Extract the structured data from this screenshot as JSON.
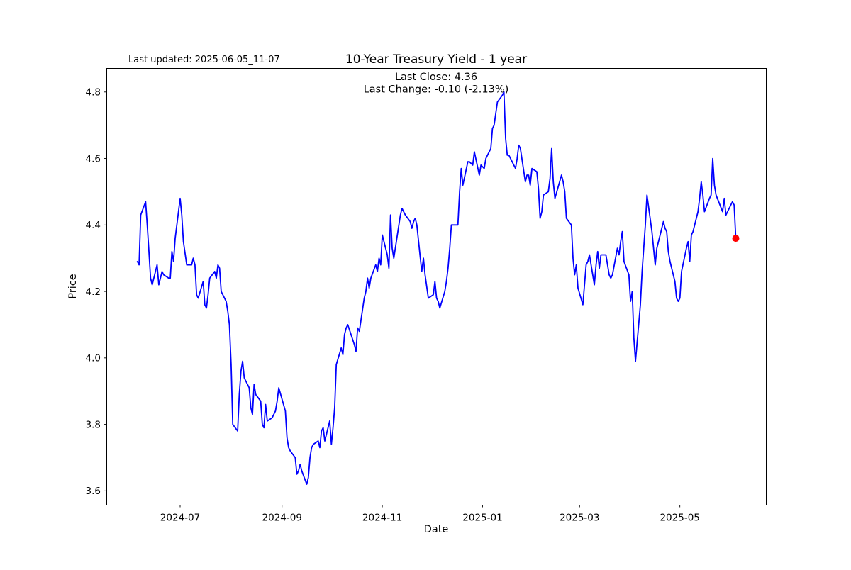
{
  "header": {
    "last_updated": "Last updated: 2025-06-05_11-07",
    "title": "10-Year Treasury Yield - 1 year",
    "annotation_line1": "Last Close: 4.36",
    "annotation_line2": "Last Change: -0.10 (-2.13%)"
  },
  "chart_data": {
    "type": "line",
    "title": "10-Year Treasury Yield - 1 year",
    "xlabel": "Date",
    "ylabel": "Price",
    "last_close": 4.36,
    "last_change": "-0.10 (-2.13%)",
    "line_color": "#0000ff",
    "marker_color": "#ff0000",
    "background_color": "#ffffff",
    "grid": false,
    "legend": "none",
    "ylim": [
      3.558,
      4.872
    ],
    "y_ticks": [
      "4.8",
      "4.6",
      "4.4",
      "4.2",
      "4.0",
      "3.8",
      "3.6"
    ],
    "x_ticks": [
      {
        "label": "2024-07",
        "date": "2024-07-01"
      },
      {
        "label": "2024-09",
        "date": "2024-09-01"
      },
      {
        "label": "2024-11",
        "date": "2024-11-01"
      },
      {
        "label": "2025-01",
        "date": "2025-01-01"
      },
      {
        "label": "2025-03",
        "date": "2025-03-01"
      },
      {
        "label": "2025-05",
        "date": "2025-05-01"
      }
    ],
    "x": [
      "2024-06-05",
      "2024-06-06",
      "2024-06-07",
      "2024-06-10",
      "2024-06-11",
      "2024-06-12",
      "2024-06-13",
      "2024-06-14",
      "2024-06-17",
      "2024-06-18",
      "2024-06-20",
      "2024-06-21",
      "2024-06-24",
      "2024-06-25",
      "2024-06-26",
      "2024-06-27",
      "2024-06-28",
      "2024-07-01",
      "2024-07-02",
      "2024-07-03",
      "2024-07-05",
      "2024-07-08",
      "2024-07-09",
      "2024-07-10",
      "2024-07-11",
      "2024-07-12",
      "2024-07-15",
      "2024-07-16",
      "2024-07-17",
      "2024-07-18",
      "2024-07-19",
      "2024-07-22",
      "2024-07-23",
      "2024-07-24",
      "2024-07-25",
      "2024-07-26",
      "2024-07-29",
      "2024-07-30",
      "2024-07-31",
      "2024-08-01",
      "2024-08-02",
      "2024-08-05",
      "2024-08-06",
      "2024-08-07",
      "2024-08-08",
      "2024-08-09",
      "2024-08-12",
      "2024-08-13",
      "2024-08-14",
      "2024-08-15",
      "2024-08-16",
      "2024-08-19",
      "2024-08-20",
      "2024-08-21",
      "2024-08-22",
      "2024-08-23",
      "2024-08-26",
      "2024-08-27",
      "2024-08-28",
      "2024-08-29",
      "2024-08-30",
      "2024-09-03",
      "2024-09-04",
      "2024-09-05",
      "2024-09-06",
      "2024-09-09",
      "2024-09-10",
      "2024-09-11",
      "2024-09-12",
      "2024-09-13",
      "2024-09-16",
      "2024-09-17",
      "2024-09-18",
      "2024-09-19",
      "2024-09-20",
      "2024-09-23",
      "2024-09-24",
      "2024-09-25",
      "2024-09-26",
      "2024-09-27",
      "2024-09-30",
      "2024-10-01",
      "2024-10-02",
      "2024-10-03",
      "2024-10-04",
      "2024-10-07",
      "2024-10-08",
      "2024-10-09",
      "2024-10-10",
      "2024-10-11",
      "2024-10-15",
      "2024-10-16",
      "2024-10-17",
      "2024-10-18",
      "2024-10-21",
      "2024-10-22",
      "2024-10-23",
      "2024-10-24",
      "2024-10-25",
      "2024-10-28",
      "2024-10-29",
      "2024-10-30",
      "2024-10-31",
      "2024-11-01",
      "2024-11-04",
      "2024-11-05",
      "2024-11-06",
      "2024-11-07",
      "2024-11-08",
      "2024-11-12",
      "2024-11-13",
      "2024-11-14",
      "2024-11-15",
      "2024-11-18",
      "2024-11-19",
      "2024-11-20",
      "2024-11-21",
      "2024-11-22",
      "2024-11-25",
      "2024-11-26",
      "2024-11-27",
      "2024-11-29",
      "2024-12-02",
      "2024-12-03",
      "2024-12-04",
      "2024-12-05",
      "2024-12-06",
      "2024-12-09",
      "2024-12-10",
      "2024-12-11",
      "2024-12-12",
      "2024-12-13",
      "2024-12-16",
      "2024-12-17",
      "2024-12-18",
      "2024-12-19",
      "2024-12-20",
      "2024-12-23",
      "2024-12-24",
      "2024-12-26",
      "2024-12-27",
      "2024-12-30",
      "2024-12-31",
      "2025-01-02",
      "2025-01-03",
      "2025-01-06",
      "2025-01-07",
      "2025-01-08",
      "2025-01-10",
      "2025-01-13",
      "2025-01-14",
      "2025-01-15",
      "2025-01-16",
      "2025-01-17",
      "2025-01-21",
      "2025-01-22",
      "2025-01-23",
      "2025-01-24",
      "2025-01-27",
      "2025-01-28",
      "2025-01-29",
      "2025-01-30",
      "2025-01-31",
      "2025-02-03",
      "2025-02-04",
      "2025-02-05",
      "2025-02-06",
      "2025-02-07",
      "2025-02-10",
      "2025-02-11",
      "2025-02-12",
      "2025-02-13",
      "2025-02-14",
      "2025-02-18",
      "2025-02-19",
      "2025-02-20",
      "2025-02-21",
      "2025-02-24",
      "2025-02-25",
      "2025-02-26",
      "2025-02-27",
      "2025-02-28",
      "2025-03-03",
      "2025-03-04",
      "2025-03-05",
      "2025-03-06",
      "2025-03-07",
      "2025-03-10",
      "2025-03-11",
      "2025-03-12",
      "2025-03-13",
      "2025-03-14",
      "2025-03-17",
      "2025-03-18",
      "2025-03-19",
      "2025-03-20",
      "2025-03-21",
      "2025-03-24",
      "2025-03-25",
      "2025-03-26",
      "2025-03-27",
      "2025-03-28",
      "2025-03-31",
      "2025-04-01",
      "2025-04-02",
      "2025-04-03",
      "2025-04-04",
      "2025-04-07",
      "2025-04-08",
      "2025-04-09",
      "2025-04-10",
      "2025-04-11",
      "2025-04-14",
      "2025-04-15",
      "2025-04-16",
      "2025-04-17",
      "2025-04-21",
      "2025-04-22",
      "2025-04-23",
      "2025-04-24",
      "2025-04-25",
      "2025-04-28",
      "2025-04-29",
      "2025-04-30",
      "2025-05-01",
      "2025-05-02",
      "2025-05-05",
      "2025-05-06",
      "2025-05-07",
      "2025-05-08",
      "2025-05-09",
      "2025-05-12",
      "2025-05-13",
      "2025-05-14",
      "2025-05-15",
      "2025-05-16",
      "2025-05-19",
      "2025-05-20",
      "2025-05-21",
      "2025-05-22",
      "2025-05-23",
      "2025-05-27",
      "2025-05-28",
      "2025-05-29",
      "2025-05-30",
      "2025-06-02",
      "2025-06-03",
      "2025-06-04"
    ],
    "y": [
      4.29,
      4.28,
      4.43,
      4.47,
      4.4,
      4.32,
      4.24,
      4.22,
      4.28,
      4.22,
      4.26,
      4.25,
      4.24,
      4.24,
      4.32,
      4.29,
      4.36,
      4.48,
      4.43,
      4.35,
      4.28,
      4.28,
      4.3,
      4.28,
      4.19,
      4.18,
      4.23,
      4.16,
      4.15,
      4.19,
      4.24,
      4.26,
      4.24,
      4.28,
      4.27,
      4.2,
      4.17,
      4.14,
      4.1,
      3.98,
      3.8,
      3.78,
      3.89,
      3.96,
      3.99,
      3.94,
      3.91,
      3.85,
      3.83,
      3.92,
      3.89,
      3.87,
      3.8,
      3.79,
      3.86,
      3.81,
      3.82,
      3.83,
      3.84,
      3.87,
      3.91,
      3.84,
      3.76,
      3.73,
      3.72,
      3.7,
      3.65,
      3.66,
      3.68,
      3.66,
      3.62,
      3.64,
      3.7,
      3.73,
      3.74,
      3.75,
      3.73,
      3.78,
      3.79,
      3.75,
      3.81,
      3.74,
      3.79,
      3.85,
      3.98,
      4.03,
      4.01,
      4.07,
      4.09,
      4.1,
      4.04,
      4.02,
      4.09,
      4.08,
      4.18,
      4.2,
      4.24,
      4.21,
      4.24,
      4.28,
      4.26,
      4.3,
      4.28,
      4.37,
      4.31,
      4.27,
      4.43,
      4.33,
      4.3,
      4.43,
      4.45,
      4.44,
      4.43,
      4.41,
      4.39,
      4.41,
      4.42,
      4.4,
      4.26,
      4.3,
      4.25,
      4.18,
      4.19,
      4.23,
      4.18,
      4.17,
      4.15,
      4.2,
      4.23,
      4.27,
      4.33,
      4.4,
      4.4,
      4.4,
      4.5,
      4.57,
      4.52,
      4.59,
      4.59,
      4.58,
      4.62,
      4.55,
      4.58,
      4.57,
      4.6,
      4.63,
      4.69,
      4.7,
      4.77,
      4.79,
      4.8,
      4.66,
      4.61,
      4.61,
      4.57,
      4.6,
      4.64,
      4.63,
      4.53,
      4.55,
      4.55,
      4.52,
      4.57,
      4.56,
      4.51,
      4.42,
      4.44,
      4.49,
      4.5,
      4.54,
      4.63,
      4.53,
      4.48,
      4.55,
      4.53,
      4.5,
      4.42,
      4.4,
      4.3,
      4.25,
      4.28,
      4.21,
      4.16,
      4.22,
      4.28,
      4.29,
      4.31,
      4.22,
      4.28,
      4.32,
      4.27,
      4.31,
      4.31,
      4.28,
      4.25,
      4.24,
      4.25,
      4.33,
      4.31,
      4.35,
      4.38,
      4.29,
      4.25,
      4.17,
      4.2,
      4.06,
      3.99,
      4.16,
      4.26,
      4.33,
      4.4,
      4.49,
      4.38,
      4.33,
      4.28,
      4.33,
      4.41,
      4.39,
      4.38,
      4.32,
      4.29,
      4.23,
      4.18,
      4.17,
      4.18,
      4.26,
      4.33,
      4.35,
      4.29,
      4.37,
      4.38,
      4.44,
      4.48,
      4.53,
      4.49,
      4.44,
      4.48,
      4.49,
      4.6,
      4.52,
      4.49,
      4.44,
      4.48,
      4.43,
      4.44,
      4.47,
      4.46,
      4.36
    ]
  }
}
